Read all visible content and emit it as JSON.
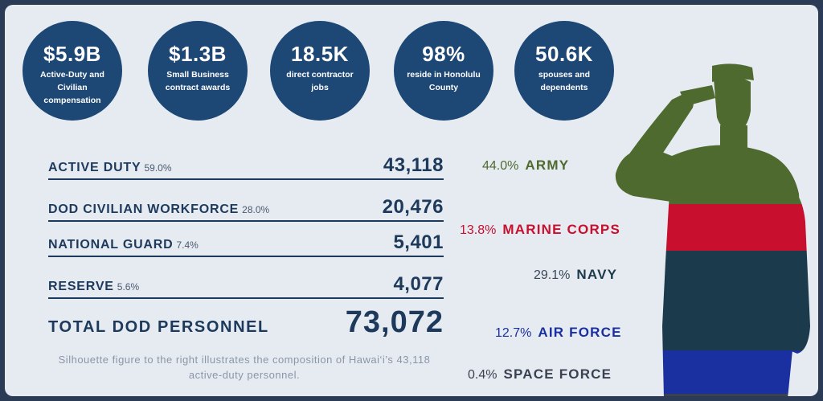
{
  "stats": [
    {
      "value": "$5.9B",
      "label": "Active-Duty and Civilian compensation"
    },
    {
      "value": "$1.3B",
      "label": "Small Business contract awards"
    },
    {
      "value": "18.5K",
      "label": "direct contractor jobs"
    },
    {
      "value": "98%",
      "label": "reside in Honolulu County"
    },
    {
      "value": "50.6K",
      "label": "spouses and dependents"
    }
  ],
  "personnel": [
    {
      "label": "ACTIVE DUTY",
      "pct": "59.0%",
      "value": "43,118"
    },
    {
      "label": "DOD CIVILIAN WORKFORCE",
      "pct": "28.0%",
      "value": "20,476"
    },
    {
      "label": "NATIONAL GUARD",
      "pct": "7.4%",
      "value": "5,401"
    },
    {
      "label": "RESERVE",
      "pct": "5.6%",
      "value": "4,077"
    }
  ],
  "total": {
    "label": "TOTAL DOD PERSONNEL",
    "value": "73,072"
  },
  "note": "Silhouette figure to the right illustrates the composition of Hawai‘i’s 43,118 active-duty personnel.",
  "branches": [
    {
      "pct": "44.0%",
      "name": "ARMY",
      "color": "#4e6a2e"
    },
    {
      "pct": "13.8%",
      "name": "MARINE CORPS",
      "color": "#c8102e"
    },
    {
      "pct": "29.1%",
      "name": "NAVY",
      "color": "#1b3a4b"
    },
    {
      "pct": "12.7%",
      "name": "AIR FORCE",
      "color": "#1a2fa0"
    },
    {
      "pct": "0.4%",
      "name": "SPACE FORCE",
      "color": "#3a4150"
    }
  ],
  "colors": {
    "stat_bg": "#1d4774",
    "text_dark": "#1d3a5c",
    "panel": "#e6ebf2",
    "frame": "#2b3a55"
  }
}
